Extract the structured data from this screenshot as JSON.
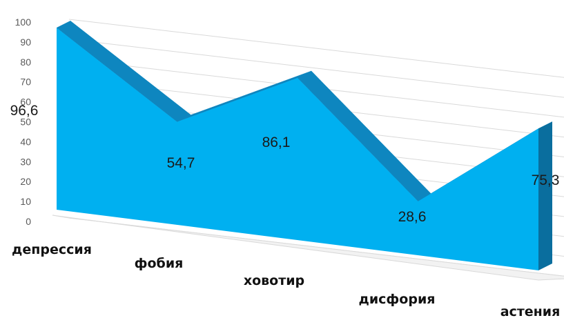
{
  "chart_data": {
    "type": "area",
    "categories": [
      "депрессия",
      "фобия",
      "ховотир",
      "дисфория",
      "астения"
    ],
    "values": [
      96.6,
      54.7,
      86.1,
      28.6,
      75.3
    ],
    "value_labels": [
      "96,6",
      "54,7",
      "86,1",
      "28,6",
      "75,3"
    ],
    "yticks": [
      "0",
      "10",
      "20",
      "30",
      "40",
      "50",
      "60",
      "70",
      "80",
      "90",
      "100"
    ],
    "ylim": [
      0,
      100
    ],
    "grid": true,
    "colors": {
      "front": "#00B0F0",
      "side": "#0E86BF",
      "edge": "#0A6E9E"
    }
  }
}
